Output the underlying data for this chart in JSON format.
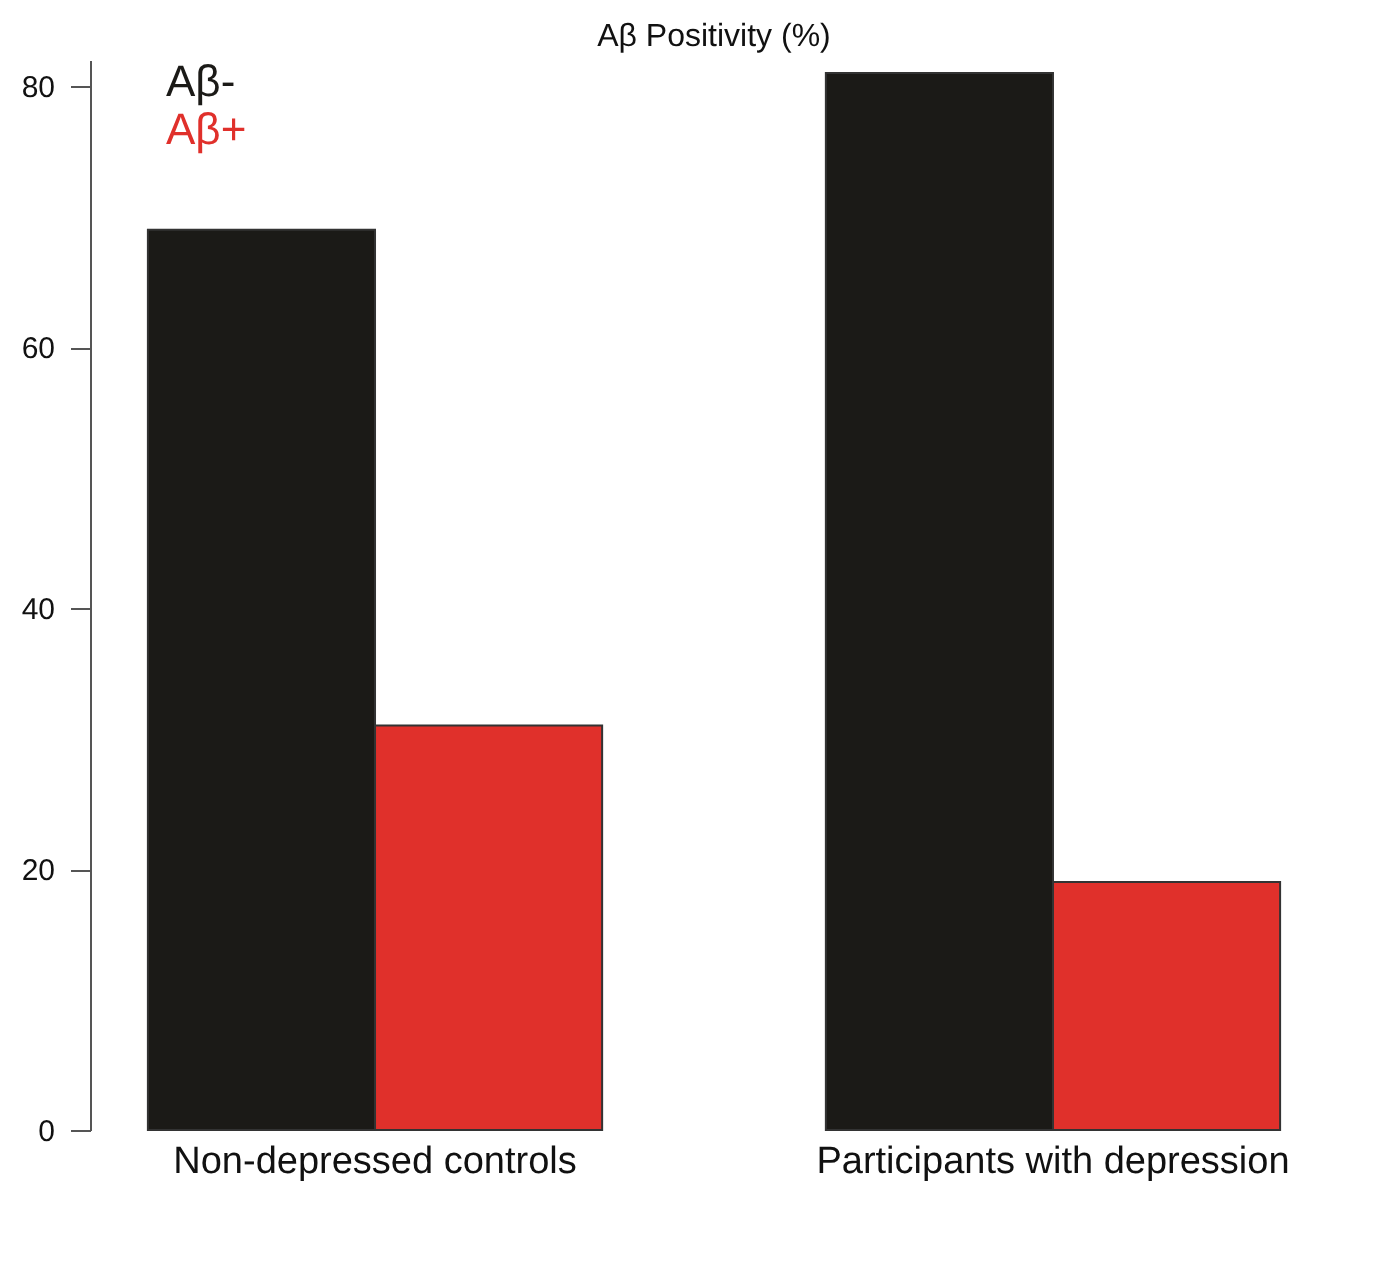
{
  "chart_data": {
    "type": "bar",
    "title": "Aβ Positivity (%)",
    "categories": [
      "Non-depressed controls",
      "Participants with depression"
    ],
    "series": [
      {
        "name": "Aβ-",
        "color": "#1b1a17",
        "values": [
          69,
          81
        ]
      },
      {
        "name": "Aβ+",
        "color": "#e0302b",
        "values": [
          31,
          19
        ]
      }
    ],
    "ylim": [
      0,
      82
    ],
    "yticks": [
      0,
      20,
      40,
      60,
      80
    ],
    "grid": false,
    "legend": "top left"
  }
}
